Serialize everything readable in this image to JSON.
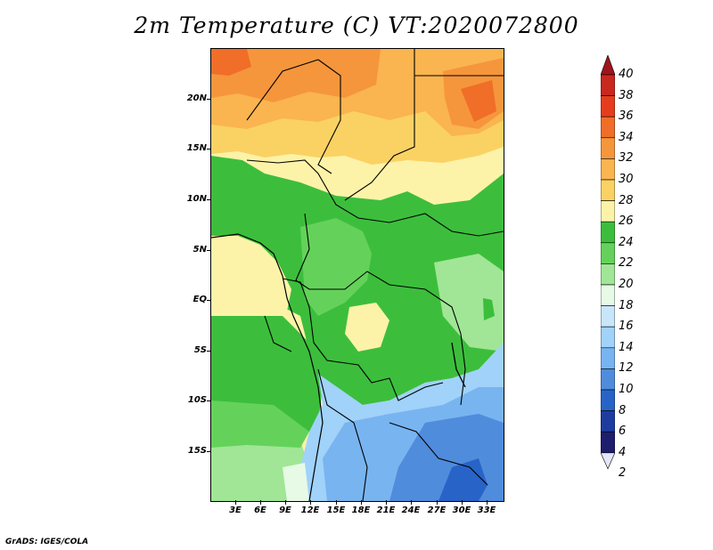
{
  "title": "2m Temperature (C) VT:2020072800",
  "footer": "GrADS: IGES/COLA",
  "lat_labels": [
    "20N",
    "15N",
    "10N",
    "5N",
    "EQ",
    "5S",
    "10S",
    "15S"
  ],
  "lon_labels": [
    "3E",
    "6E",
    "9E",
    "12E",
    "15E",
    "18E",
    "21E",
    "24E",
    "27E",
    "30E",
    "33E"
  ],
  "colorbar": {
    "labels": [
      "40",
      "38",
      "36",
      "34",
      "32",
      "30",
      "28",
      "26",
      "24",
      "22",
      "20",
      "18",
      "16",
      "14",
      "12",
      "10",
      "8",
      "6",
      "4",
      "2"
    ],
    "colors": [
      "#a0141e",
      "#c8281e",
      "#e63c1e",
      "#f06e28",
      "#f5963c",
      "#fab450",
      "#fad264",
      "#fdf3a8",
      "#3cbe3c",
      "#64d25a",
      "#a0e696",
      "#e6fae6",
      "#c8e6fa",
      "#a0d2fa",
      "#78b4f0",
      "#508cdc",
      "#2864c8",
      "#1e3ca0",
      "#1e1e6e"
    ],
    "under_color": "#e6e6fa"
  }
}
